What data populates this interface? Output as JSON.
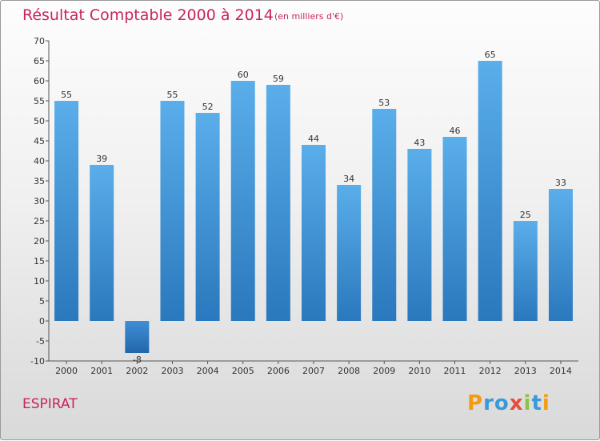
{
  "header": {
    "title": "Résultat Comptable 2000 à 2014",
    "subtitle": "(en milliers d'€)"
  },
  "footer": {
    "commune": "ESPIRAT",
    "logo_text": "Proxiti"
  },
  "colors": {
    "accent": "#c8245c",
    "bar_top": "#5aaeea",
    "bar_bottom": "#2a78bd",
    "negative_top": "#3f8fd6",
    "negative_bottom": "#2266aa"
  },
  "chart_data": {
    "type": "bar",
    "categories": [
      "2000",
      "2001",
      "2002",
      "2003",
      "2004",
      "2005",
      "2006",
      "2007",
      "2008",
      "2009",
      "2010",
      "2011",
      "2012",
      "2013",
      "2014"
    ],
    "values": [
      55,
      39,
      -8,
      55,
      52,
      60,
      59,
      44,
      34,
      53,
      43,
      46,
      65,
      25,
      33
    ],
    "ylim": [
      -10,
      70
    ],
    "yticks": [
      -10,
      -5,
      0,
      5,
      10,
      15,
      20,
      25,
      30,
      35,
      40,
      45,
      50,
      55,
      60,
      65,
      70
    ],
    "grid": false,
    "legend": "none"
  }
}
